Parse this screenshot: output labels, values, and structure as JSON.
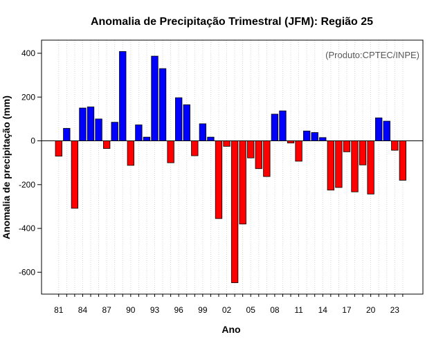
{
  "chart_data": {
    "type": "bar",
    "title": "Anomalia de Precipitação Trimestral (JFM): Região 25",
    "xlabel": "Ano",
    "ylabel": "Anomalia de precipitação (mm)",
    "credit": "(Produto:CPTEC/INPE)",
    "ylim": [
      -700,
      460
    ],
    "yticks": [
      -600,
      -400,
      -200,
      0,
      200,
      400
    ],
    "ytick_labels": [
      "-600",
      "-400",
      "-200",
      "0",
      "200",
      "400"
    ],
    "grid": "vertical-dotted",
    "positive_color": "#0000ff",
    "negative_color": "#ff0000",
    "categories": [
      "81",
      "82",
      "83",
      "84",
      "85",
      "86",
      "87",
      "88",
      "89",
      "90",
      "91",
      "92",
      "93",
      "94",
      "95",
      "96",
      "97",
      "98",
      "99",
      "00",
      "01",
      "02",
      "03",
      "04",
      "05",
      "06",
      "07",
      "08",
      "09",
      "10",
      "11",
      "12",
      "13",
      "14",
      "15",
      "16",
      "17",
      "18",
      "19",
      "20",
      "21",
      "22",
      "23",
      "24"
    ],
    "xtick_labels": [
      "81",
      "84",
      "87",
      "90",
      "93",
      "96",
      "99",
      "02",
      "05",
      "08",
      "11",
      "14",
      "17",
      "20",
      "23"
    ],
    "values": [
      -70,
      57,
      -308,
      150,
      155,
      100,
      -35,
      85,
      408,
      -112,
      73,
      17,
      387,
      330,
      -100,
      197,
      165,
      -68,
      78,
      17,
      -355,
      -25,
      -648,
      -380,
      -78,
      -127,
      -163,
      122,
      137,
      -10,
      -93,
      45,
      38,
      15,
      -225,
      -213,
      -50,
      -233,
      -110,
      -243,
      105,
      90,
      -43,
      -180
    ]
  }
}
